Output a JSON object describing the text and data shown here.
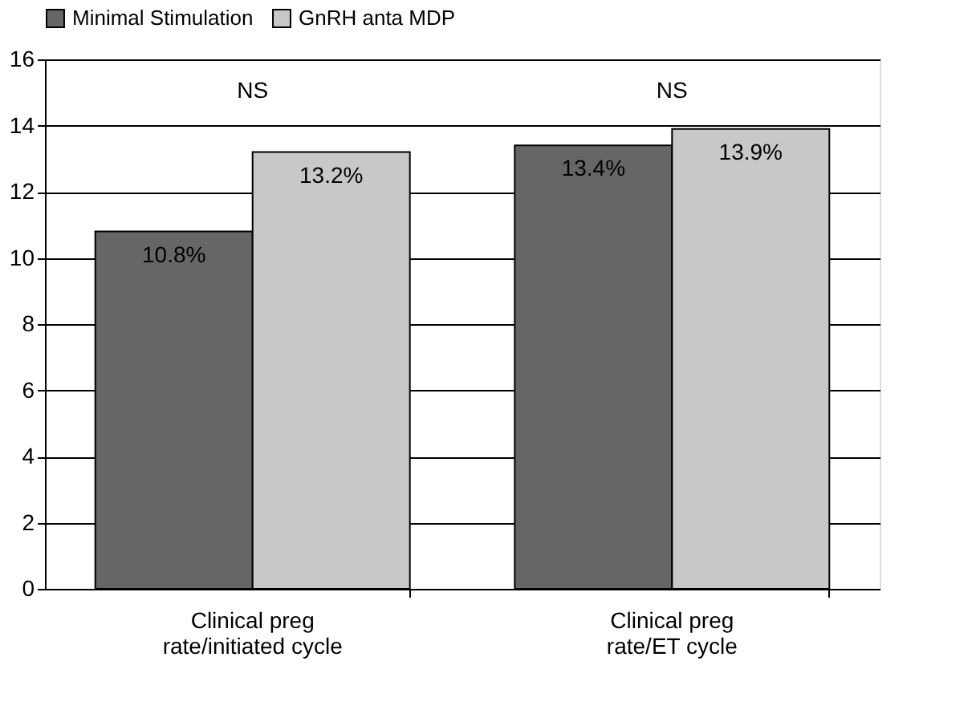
{
  "chart_data": {
    "type": "bar",
    "categories": [
      "Clinical preg\nrate/initiated cycle",
      "Clinical preg\nrate/ET cycle"
    ],
    "series": [
      {
        "name": "Minimal Stimulation",
        "color": "#666666",
        "values": [
          10.8,
          13.4
        ],
        "value_labels": [
          "10.8%",
          "13.4%"
        ]
      },
      {
        "name": "GnRH anta MDP",
        "color": "#c8c8c8",
        "values": [
          13.2,
          13.9
        ],
        "value_labels": [
          "13.2%",
          "13.9%"
        ]
      }
    ],
    "ylim": [
      0,
      16
    ],
    "yticks": [
      0,
      2,
      4,
      6,
      8,
      10,
      12,
      14,
      16
    ],
    "grid": "y",
    "legend": "top",
    "annotations": [
      "NS",
      "NS"
    ]
  }
}
